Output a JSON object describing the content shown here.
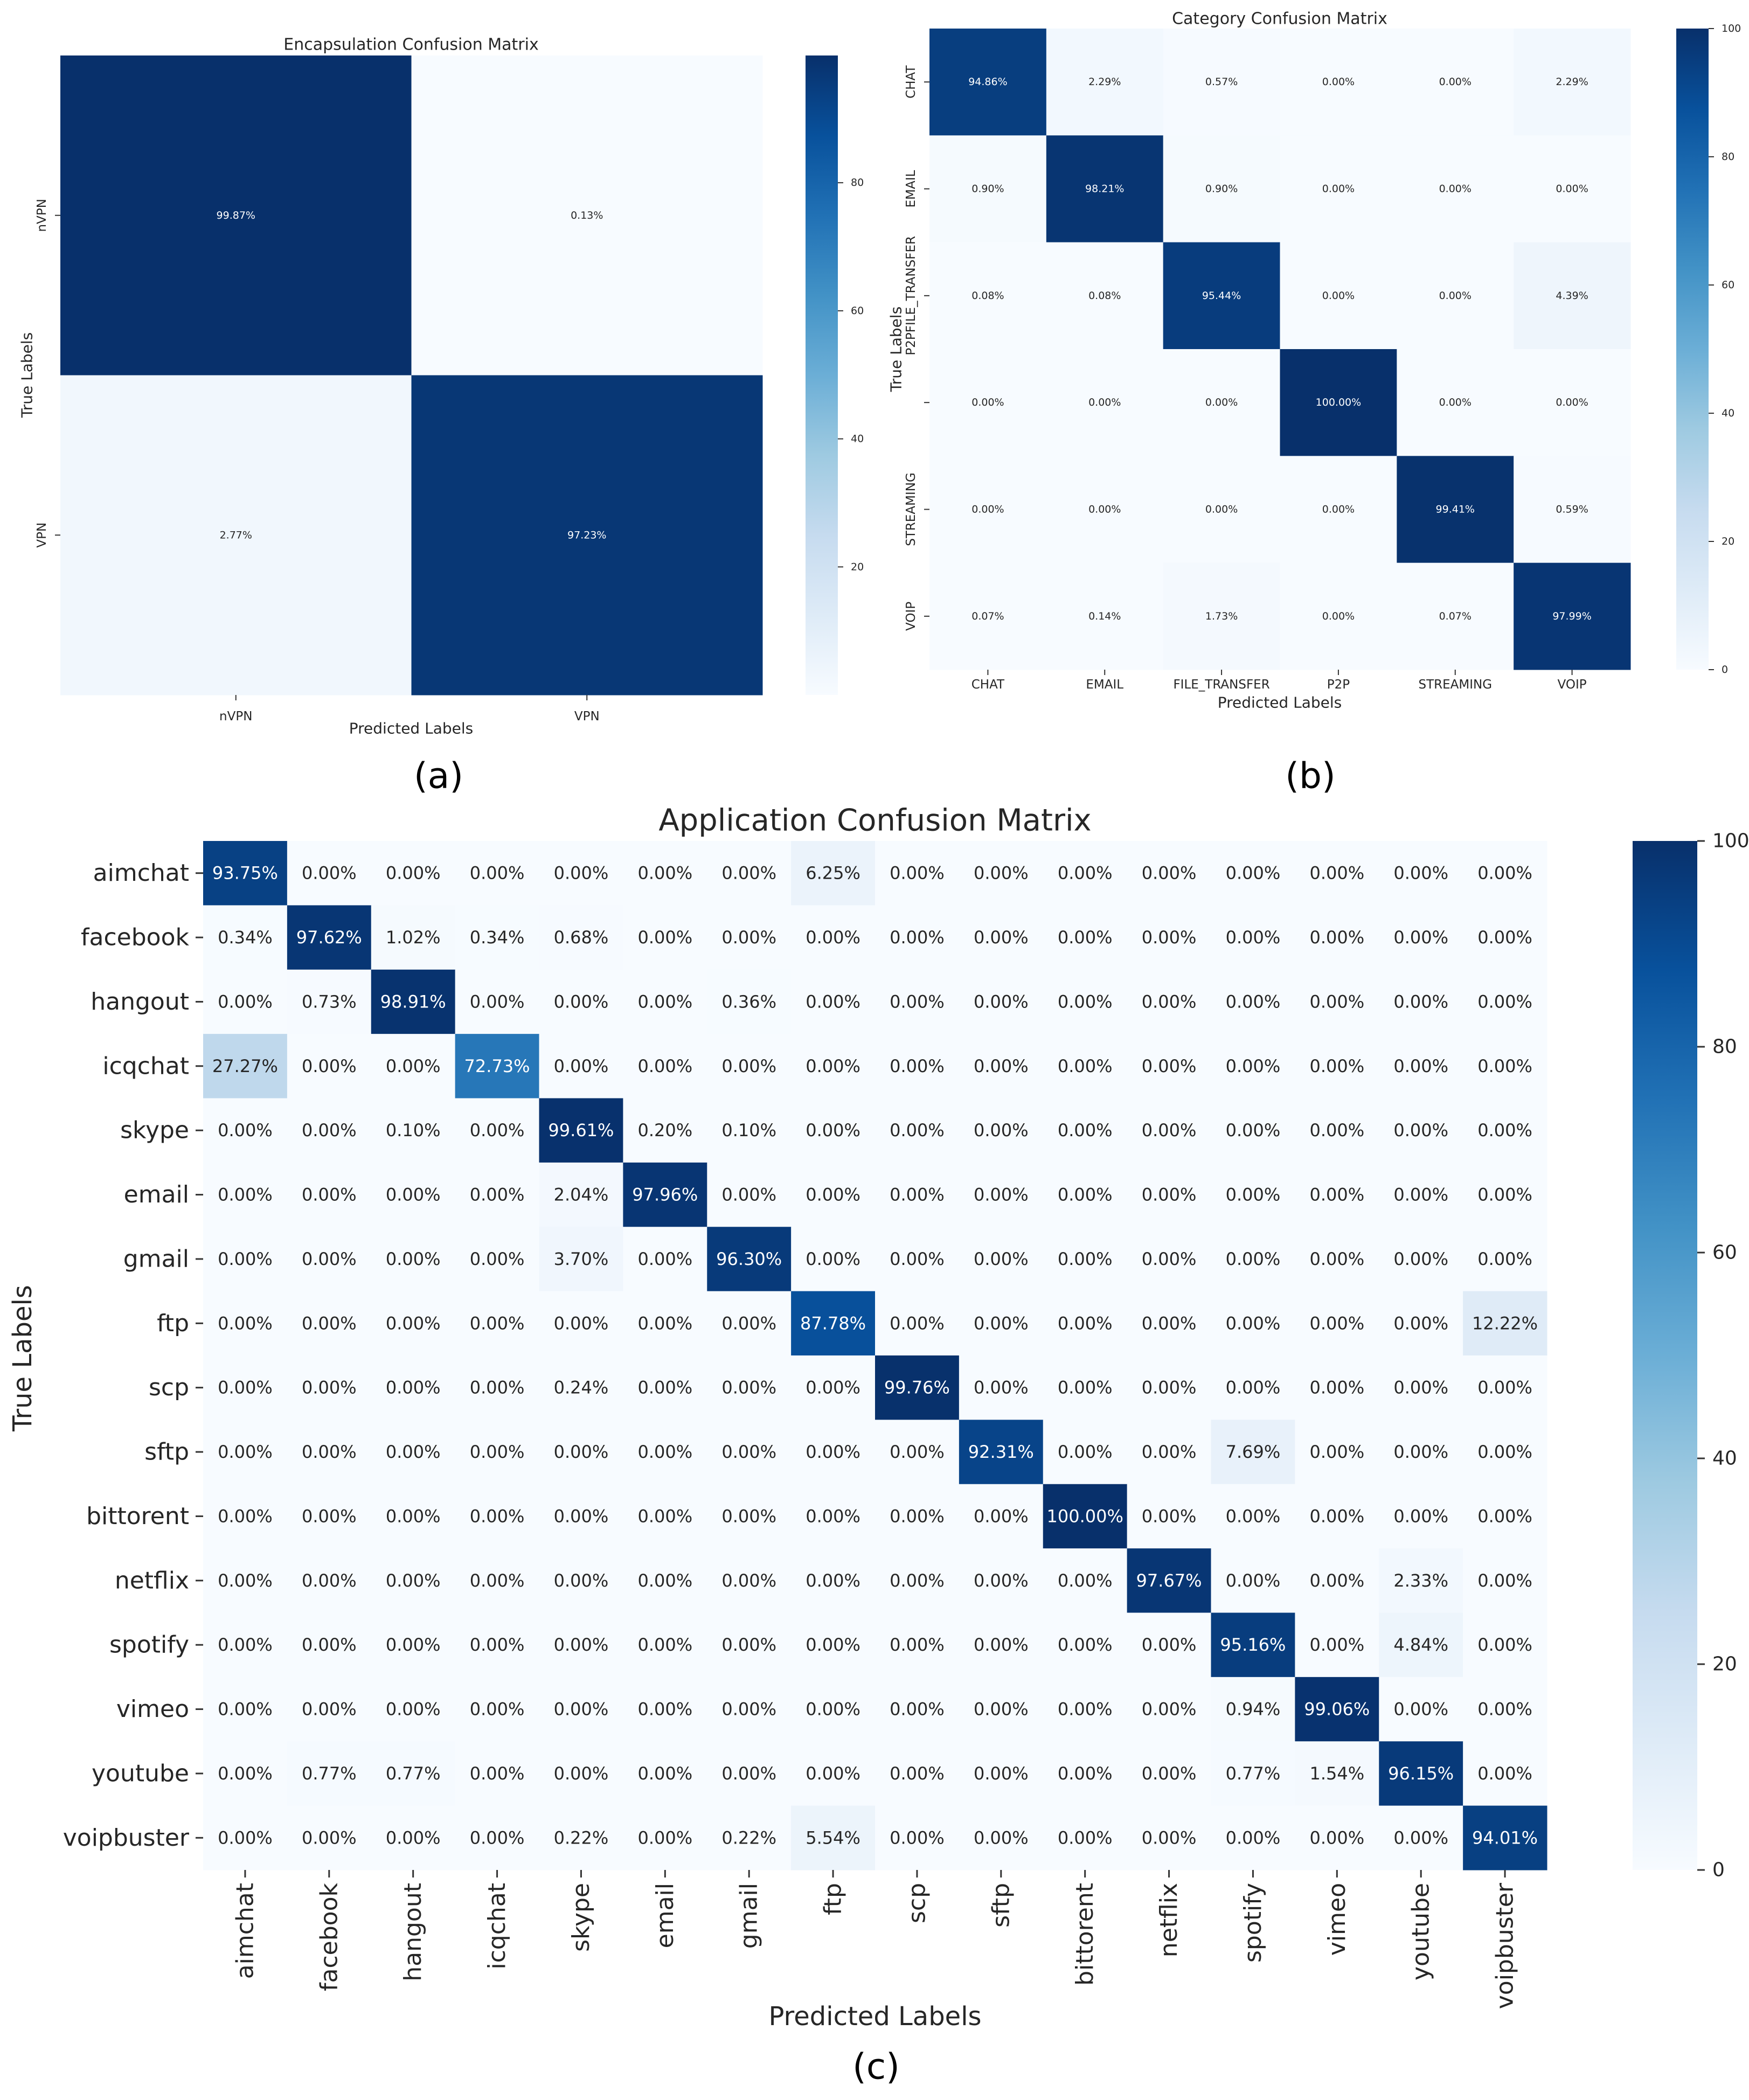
{
  "chart_data": [
    {
      "type": "heatmap",
      "panel_label": "(a)",
      "title": "Encapsulation Confusion Matrix",
      "xlabel": "Predicted Labels",
      "ylabel": "True Labels",
      "categories": [
        "nVPN",
        "VPN"
      ],
      "values": [
        [
          99.87,
          0.13
        ],
        [
          2.77,
          97.23
        ]
      ],
      "cell_labels": [
        [
          "99.87%",
          "0.13%"
        ],
        [
          "2.77%",
          "97.23%"
        ]
      ],
      "colorbar": {
        "min": 0,
        "max": 99.87,
        "ticks": [
          20,
          40,
          60,
          80
        ],
        "tick_labels": [
          "20",
          "40",
          "60",
          "80"
        ]
      }
    },
    {
      "type": "heatmap",
      "panel_label": "(b)",
      "title": "Category Confusion Matrix",
      "xlabel": "Predicted Labels",
      "ylabel": "True Labels",
      "x_categories": [
        "CHAT",
        "EMAIL",
        "FILE_TRANSFER",
        "P2P",
        "STREAMING",
        "VOIP"
      ],
      "y_categories": [
        "CHAT",
        "EMAIL",
        "P2PFILE_TRANSFER",
        "",
        "STREAMING",
        "VOIP"
      ],
      "values": [
        [
          94.86,
          2.29,
          0.57,
          0.0,
          0.0,
          2.29
        ],
        [
          0.9,
          98.21,
          0.9,
          0.0,
          0.0,
          0.0
        ],
        [
          0.08,
          0.08,
          95.44,
          0.0,
          0.0,
          4.39
        ],
        [
          0.0,
          0.0,
          0.0,
          100.0,
          0.0,
          0.0
        ],
        [
          0.0,
          0.0,
          0.0,
          0.0,
          99.41,
          0.59
        ],
        [
          0.07,
          0.14,
          1.73,
          0.0,
          0.07,
          97.99
        ]
      ],
      "cell_labels": [
        [
          "94.86%",
          "2.29%",
          "0.57%",
          "0.00%",
          "0.00%",
          "2.29%"
        ],
        [
          "0.90%",
          "98.21%",
          "0.90%",
          "0.00%",
          "0.00%",
          "0.00%"
        ],
        [
          "0.08%",
          "0.08%",
          "95.44%",
          "0.00%",
          "0.00%",
          "4.39%"
        ],
        [
          "0.00%",
          "0.00%",
          "0.00%",
          "100.00%",
          "0.00%",
          "0.00%"
        ],
        [
          "0.00%",
          "0.00%",
          "0.00%",
          "0.00%",
          "99.41%",
          "0.59%"
        ],
        [
          "0.07%",
          "0.14%",
          "1.73%",
          "0.00%",
          "0.07%",
          "97.99%"
        ]
      ],
      "colorbar": {
        "min": 0,
        "max": 100,
        "ticks": [
          0,
          20,
          40,
          60,
          80,
          100
        ],
        "tick_labels": [
          "0",
          "20",
          "40",
          "60",
          "80",
          "100"
        ]
      }
    },
    {
      "type": "heatmap",
      "panel_label": "(c)",
      "title": "Application Confusion Matrix",
      "xlabel": "Predicted Labels",
      "ylabel": "True Labels",
      "categories": [
        "aimchat",
        "facebook",
        "hangout",
        "icqchat",
        "skype",
        "email",
        "gmail",
        "ftp",
        "scp",
        "sftp",
        "bittorent",
        "netflix",
        "spotify",
        "vimeo",
        "youtube",
        "voipbuster"
      ],
      "values": [
        [
          93.75,
          0.0,
          0.0,
          0.0,
          0.0,
          0.0,
          0.0,
          6.25,
          0.0,
          0.0,
          0.0,
          0.0,
          0.0,
          0.0,
          0.0,
          0.0
        ],
        [
          0.34,
          97.62,
          1.02,
          0.34,
          0.68,
          0.0,
          0.0,
          0.0,
          0.0,
          0.0,
          0.0,
          0.0,
          0.0,
          0.0,
          0.0,
          0.0
        ],
        [
          0.0,
          0.73,
          98.91,
          0.0,
          0.0,
          0.0,
          0.36,
          0.0,
          0.0,
          0.0,
          0.0,
          0.0,
          0.0,
          0.0,
          0.0,
          0.0
        ],
        [
          27.27,
          0.0,
          0.0,
          72.73,
          0.0,
          0.0,
          0.0,
          0.0,
          0.0,
          0.0,
          0.0,
          0.0,
          0.0,
          0.0,
          0.0,
          0.0
        ],
        [
          0.0,
          0.0,
          0.1,
          0.0,
          99.61,
          0.2,
          0.1,
          0.0,
          0.0,
          0.0,
          0.0,
          0.0,
          0.0,
          0.0,
          0.0,
          0.0
        ],
        [
          0.0,
          0.0,
          0.0,
          0.0,
          2.04,
          97.96,
          0.0,
          0.0,
          0.0,
          0.0,
          0.0,
          0.0,
          0.0,
          0.0,
          0.0,
          0.0
        ],
        [
          0.0,
          0.0,
          0.0,
          0.0,
          3.7,
          0.0,
          96.3,
          0.0,
          0.0,
          0.0,
          0.0,
          0.0,
          0.0,
          0.0,
          0.0,
          0.0
        ],
        [
          0.0,
          0.0,
          0.0,
          0.0,
          0.0,
          0.0,
          0.0,
          87.78,
          0.0,
          0.0,
          0.0,
          0.0,
          0.0,
          0.0,
          0.0,
          12.22
        ],
        [
          0.0,
          0.0,
          0.0,
          0.0,
          0.24,
          0.0,
          0.0,
          0.0,
          99.76,
          0.0,
          0.0,
          0.0,
          0.0,
          0.0,
          0.0,
          0.0
        ],
        [
          0.0,
          0.0,
          0.0,
          0.0,
          0.0,
          0.0,
          0.0,
          0.0,
          0.0,
          92.31,
          0.0,
          0.0,
          7.69,
          0.0,
          0.0,
          0.0
        ],
        [
          0.0,
          0.0,
          0.0,
          0.0,
          0.0,
          0.0,
          0.0,
          0.0,
          0.0,
          0.0,
          100.0,
          0.0,
          0.0,
          0.0,
          0.0,
          0.0
        ],
        [
          0.0,
          0.0,
          0.0,
          0.0,
          0.0,
          0.0,
          0.0,
          0.0,
          0.0,
          0.0,
          0.0,
          97.67,
          0.0,
          0.0,
          2.33,
          0.0
        ],
        [
          0.0,
          0.0,
          0.0,
          0.0,
          0.0,
          0.0,
          0.0,
          0.0,
          0.0,
          0.0,
          0.0,
          0.0,
          95.16,
          0.0,
          4.84,
          0.0
        ],
        [
          0.0,
          0.0,
          0.0,
          0.0,
          0.0,
          0.0,
          0.0,
          0.0,
          0.0,
          0.0,
          0.0,
          0.0,
          0.94,
          99.06,
          0.0,
          0.0
        ],
        [
          0.0,
          0.77,
          0.77,
          0.0,
          0.0,
          0.0,
          0.0,
          0.0,
          0.0,
          0.0,
          0.0,
          0.0,
          0.77,
          1.54,
          96.15,
          0.0
        ],
        [
          0.0,
          0.0,
          0.0,
          0.0,
          0.22,
          0.0,
          0.22,
          5.54,
          0.0,
          0.0,
          0.0,
          0.0,
          0.0,
          0.0,
          0.0,
          94.01
        ]
      ],
      "cell_labels": [
        [
          "93.75%",
          "0.00%",
          "0.00%",
          "0.00%",
          "0.00%",
          "0.00%",
          "0.00%",
          "6.25%",
          "0.00%",
          "0.00%",
          "0.00%",
          "0.00%",
          "0.00%",
          "0.00%",
          "0.00%",
          "0.00%"
        ],
        [
          "0.34%",
          "97.62%",
          "1.02%",
          "0.34%",
          "0.68%",
          "0.00%",
          "0.00%",
          "0.00%",
          "0.00%",
          "0.00%",
          "0.00%",
          "0.00%",
          "0.00%",
          "0.00%",
          "0.00%",
          "0.00%"
        ],
        [
          "0.00%",
          "0.73%",
          "98.91%",
          "0.00%",
          "0.00%",
          "0.00%",
          "0.36%",
          "0.00%",
          "0.00%",
          "0.00%",
          "0.00%",
          "0.00%",
          "0.00%",
          "0.00%",
          "0.00%",
          "0.00%"
        ],
        [
          "27.27%",
          "0.00%",
          "0.00%",
          "72.73%",
          "0.00%",
          "0.00%",
          "0.00%",
          "0.00%",
          "0.00%",
          "0.00%",
          "0.00%",
          "0.00%",
          "0.00%",
          "0.00%",
          "0.00%",
          "0.00%"
        ],
        [
          "0.00%",
          "0.00%",
          "0.10%",
          "0.00%",
          "99.61%",
          "0.20%",
          "0.10%",
          "0.00%",
          "0.00%",
          "0.00%",
          "0.00%",
          "0.00%",
          "0.00%",
          "0.00%",
          "0.00%",
          "0.00%"
        ],
        [
          "0.00%",
          "0.00%",
          "0.00%",
          "0.00%",
          "2.04%",
          "97.96%",
          "0.00%",
          "0.00%",
          "0.00%",
          "0.00%",
          "0.00%",
          "0.00%",
          "0.00%",
          "0.00%",
          "0.00%",
          "0.00%"
        ],
        [
          "0.00%",
          "0.00%",
          "0.00%",
          "0.00%",
          "3.70%",
          "0.00%",
          "96.30%",
          "0.00%",
          "0.00%",
          "0.00%",
          "0.00%",
          "0.00%",
          "0.00%",
          "0.00%",
          "0.00%",
          "0.00%"
        ],
        [
          "0.00%",
          "0.00%",
          "0.00%",
          "0.00%",
          "0.00%",
          "0.00%",
          "0.00%",
          "87.78%",
          "0.00%",
          "0.00%",
          "0.00%",
          "0.00%",
          "0.00%",
          "0.00%",
          "0.00%",
          "12.22%"
        ],
        [
          "0.00%",
          "0.00%",
          "0.00%",
          "0.00%",
          "0.24%",
          "0.00%",
          "0.00%",
          "0.00%",
          "99.76%",
          "0.00%",
          "0.00%",
          "0.00%",
          "0.00%",
          "0.00%",
          "0.00%",
          "0.00%"
        ],
        [
          "0.00%",
          "0.00%",
          "0.00%",
          "0.00%",
          "0.00%",
          "0.00%",
          "0.00%",
          "0.00%",
          "0.00%",
          "92.31%",
          "0.00%",
          "0.00%",
          "7.69%",
          "0.00%",
          "0.00%",
          "0.00%"
        ],
        [
          "0.00%",
          "0.00%",
          "0.00%",
          "0.00%",
          "0.00%",
          "0.00%",
          "0.00%",
          "0.00%",
          "0.00%",
          "0.00%",
          "100.00%",
          "0.00%",
          "0.00%",
          "0.00%",
          "0.00%",
          "0.00%"
        ],
        [
          "0.00%",
          "0.00%",
          "0.00%",
          "0.00%",
          "0.00%",
          "0.00%",
          "0.00%",
          "0.00%",
          "0.00%",
          "0.00%",
          "0.00%",
          "97.67%",
          "0.00%",
          "0.00%",
          "2.33%",
          "0.00%"
        ],
        [
          "0.00%",
          "0.00%",
          "0.00%",
          "0.00%",
          "0.00%",
          "0.00%",
          "0.00%",
          "0.00%",
          "0.00%",
          "0.00%",
          "0.00%",
          "0.00%",
          "95.16%",
          "0.00%",
          "4.84%",
          "0.00%"
        ],
        [
          "0.00%",
          "0.00%",
          "0.00%",
          "0.00%",
          "0.00%",
          "0.00%",
          "0.00%",
          "0.00%",
          "0.00%",
          "0.00%",
          "0.00%",
          "0.00%",
          "0.94%",
          "99.06%",
          "0.00%",
          "0.00%"
        ],
        [
          "0.00%",
          "0.77%",
          "0.77%",
          "0.00%",
          "0.00%",
          "0.00%",
          "0.00%",
          "0.00%",
          "0.00%",
          "0.00%",
          "0.00%",
          "0.00%",
          "0.77%",
          "1.54%",
          "96.15%",
          "0.00%"
        ],
        [
          "0.00%",
          "0.00%",
          "0.00%",
          "0.00%",
          "0.22%",
          "0.00%",
          "0.22%",
          "5.54%",
          "0.00%",
          "0.00%",
          "0.00%",
          "0.00%",
          "0.00%",
          "0.00%",
          "0.00%",
          "94.01%"
        ]
      ],
      "colorbar": {
        "min": 0,
        "max": 100,
        "ticks": [
          0,
          20,
          40,
          60,
          80,
          100
        ],
        "tick_labels": [
          "0",
          "20",
          "40",
          "60",
          "80",
          "100"
        ]
      }
    }
  ],
  "colors": {
    "low": "#f7fbff",
    "high": "#08306b",
    "dark_text": "#262626",
    "light_text": "#ffffff"
  }
}
